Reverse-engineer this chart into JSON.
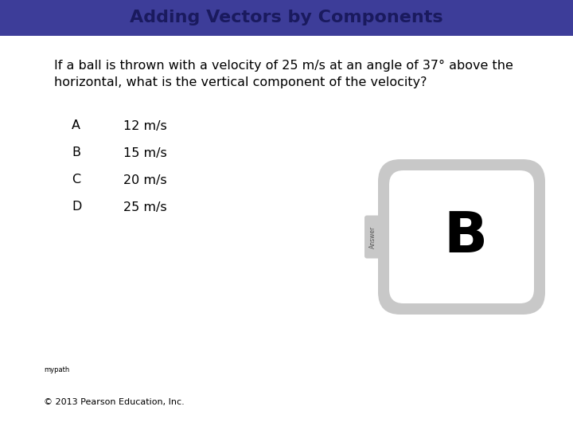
{
  "title": "Adding Vectors by Components",
  "title_bg_color": "#3d3d99",
  "title_text_color": "#1a1a5e",
  "title_fontsize": 16,
  "question": "If a ball is thrown with a velocity of 25 m/s at an angle of 37° above the\nhorizontal, what is the vertical component of the velocity?",
  "question_fontsize": 11.5,
  "options": [
    {
      "label": "A",
      "text": "12 m/s"
    },
    {
      "label": "B",
      "text": "15 m/s"
    },
    {
      "label": "C",
      "text": "20 m/s"
    },
    {
      "label": "D",
      "text": "25 m/s"
    }
  ],
  "options_fontsize": 11.5,
  "answer": "B",
  "answer_fontsize": 52,
  "answer_box_color": "#c8c8c8",
  "answer_tab_text": "Answer",
  "bg_color": "#ffffff",
  "footer": "© 2013 Pearson Education, Inc.",
  "footer_fontsize": 8,
  "small_text": "mypath",
  "small_fontsize": 6
}
